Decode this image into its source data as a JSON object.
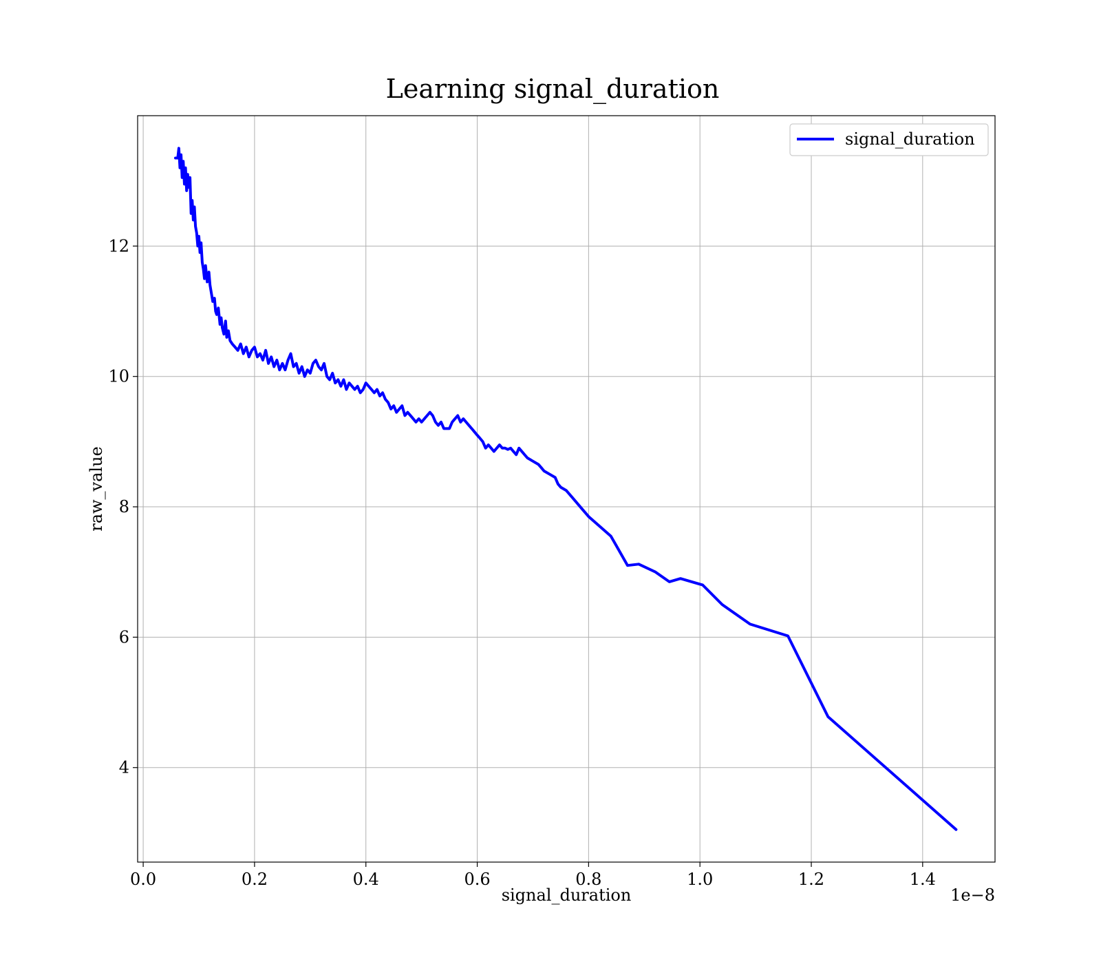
{
  "chart_data": {
    "type": "line",
    "title": "Learning signal_duration",
    "xlabel": "signal_duration",
    "ylabel": "raw_value",
    "x_offset_text": "1e−8",
    "x_scale_factor": 1e-08,
    "xlim": [
      -0.01,
      1.53
    ],
    "ylim": [
      2.55,
      14.0
    ],
    "x_ticks": [
      0.0,
      0.2,
      0.4,
      0.6,
      0.8,
      1.0,
      1.2,
      1.4
    ],
    "x_tick_labels": [
      "0.0",
      "0.2",
      "0.4",
      "0.6",
      "0.8",
      "1.0",
      "1.2",
      "1.4"
    ],
    "y_ticks": [
      4,
      6,
      8,
      10,
      12
    ],
    "y_tick_labels": [
      "4",
      "6",
      "8",
      "10",
      "12"
    ],
    "grid": true,
    "legend_position": "top-right",
    "series": [
      {
        "name": "signal_duration",
        "color": "#0000ff",
        "x": [
          0.058,
          0.062,
          0.064,
          0.066,
          0.068,
          0.07,
          0.072,
          0.074,
          0.076,
          0.078,
          0.08,
          0.082,
          0.084,
          0.086,
          0.088,
          0.09,
          0.092,
          0.094,
          0.096,
          0.098,
          0.1,
          0.102,
          0.104,
          0.106,
          0.108,
          0.11,
          0.112,
          0.115,
          0.118,
          0.12,
          0.122,
          0.125,
          0.128,
          0.13,
          0.132,
          0.135,
          0.138,
          0.14,
          0.142,
          0.145,
          0.148,
          0.15,
          0.153,
          0.156,
          0.16,
          0.165,
          0.17,
          0.175,
          0.18,
          0.185,
          0.19,
          0.195,
          0.2,
          0.205,
          0.21,
          0.215,
          0.22,
          0.225,
          0.23,
          0.235,
          0.24,
          0.245,
          0.25,
          0.255,
          0.26,
          0.265,
          0.27,
          0.275,
          0.28,
          0.285,
          0.29,
          0.295,
          0.3,
          0.305,
          0.31,
          0.315,
          0.32,
          0.325,
          0.33,
          0.335,
          0.34,
          0.345,
          0.35,
          0.355,
          0.36,
          0.365,
          0.37,
          0.375,
          0.38,
          0.385,
          0.39,
          0.395,
          0.4,
          0.405,
          0.41,
          0.415,
          0.42,
          0.425,
          0.43,
          0.435,
          0.44,
          0.445,
          0.45,
          0.455,
          0.46,
          0.465,
          0.47,
          0.475,
          0.48,
          0.485,
          0.49,
          0.495,
          0.5,
          0.505,
          0.51,
          0.515,
          0.52,
          0.525,
          0.53,
          0.535,
          0.54,
          0.55,
          0.555,
          0.56,
          0.565,
          0.57,
          0.575,
          0.58,
          0.585,
          0.59,
          0.595,
          0.6,
          0.605,
          0.61,
          0.615,
          0.62,
          0.625,
          0.63,
          0.635,
          0.64,
          0.645,
          0.65,
          0.655,
          0.66,
          0.665,
          0.67,
          0.675,
          0.68,
          0.69,
          0.7,
          0.71,
          0.715,
          0.72,
          0.73,
          0.74,
          0.745,
          0.75,
          0.76,
          0.77,
          0.78,
          0.79,
          0.8,
          0.82,
          0.84,
          0.85,
          0.87,
          0.89,
          0.92,
          0.945,
          0.965,
          1.005,
          1.04,
          1.09,
          1.158,
          1.23,
          1.46
        ],
        "y": [
          13.35,
          13.35,
          13.5,
          13.2,
          13.4,
          13.05,
          13.3,
          12.95,
          13.2,
          12.85,
          13.1,
          12.9,
          13.05,
          12.5,
          12.7,
          12.4,
          12.6,
          12.3,
          12.2,
          12.0,
          12.15,
          11.9,
          12.05,
          11.75,
          11.65,
          11.5,
          11.7,
          11.45,
          11.6,
          11.4,
          11.3,
          11.15,
          11.2,
          11.0,
          10.95,
          11.05,
          10.8,
          10.9,
          10.75,
          10.65,
          10.85,
          10.6,
          10.7,
          10.55,
          10.5,
          10.45,
          10.4,
          10.5,
          10.35,
          10.45,
          10.3,
          10.4,
          10.45,
          10.3,
          10.35,
          10.25,
          10.4,
          10.2,
          10.3,
          10.15,
          10.25,
          10.1,
          10.2,
          10.1,
          10.25,
          10.35,
          10.15,
          10.2,
          10.05,
          10.15,
          10.0,
          10.1,
          10.05,
          10.2,
          10.25,
          10.15,
          10.1,
          10.2,
          10.0,
          9.95,
          10.05,
          9.9,
          9.95,
          9.85,
          9.95,
          9.8,
          9.9,
          9.85,
          9.8,
          9.85,
          9.75,
          9.8,
          9.9,
          9.85,
          9.8,
          9.75,
          9.8,
          9.7,
          9.75,
          9.65,
          9.6,
          9.5,
          9.55,
          9.45,
          9.5,
          9.55,
          9.4,
          9.45,
          9.4,
          9.35,
          9.3,
          9.35,
          9.3,
          9.35,
          9.4,
          9.45,
          9.4,
          9.3,
          9.25,
          9.3,
          9.2,
          9.2,
          9.3,
          9.35,
          9.4,
          9.3,
          9.35,
          9.3,
          9.25,
          9.2,
          9.15,
          9.1,
          9.05,
          9.0,
          8.9,
          8.95,
          8.9,
          8.85,
          8.9,
          8.95,
          8.9,
          8.9,
          8.88,
          8.9,
          8.85,
          8.8,
          8.9,
          8.85,
          8.75,
          8.7,
          8.65,
          8.6,
          8.55,
          8.5,
          8.45,
          8.35,
          8.3,
          8.25,
          8.15,
          8.05,
          7.95,
          7.85,
          7.7,
          7.55,
          7.4,
          7.1,
          7.12,
          7.0,
          6.85,
          6.9,
          6.8,
          6.5,
          6.2,
          6.02,
          4.78,
          3.05
        ]
      }
    ]
  }
}
